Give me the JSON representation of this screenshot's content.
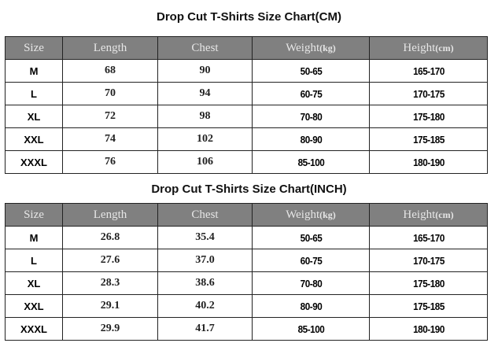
{
  "tables": [
    {
      "title": "Drop Cut T-Shirts Size Chart(CM)",
      "headers": {
        "size": "Size",
        "length": "Length",
        "chest": "Chest",
        "weight": "Weight",
        "weight_unit": "(kg)",
        "height": "Height",
        "height_unit": "(cm)"
      },
      "rows": [
        {
          "size": "M",
          "length": "68",
          "chest": "90",
          "weight": "50-65",
          "height": "165-170"
        },
        {
          "size": "L",
          "length": "70",
          "chest": "94",
          "weight": "60-75",
          "height": "170-175"
        },
        {
          "size": "XL",
          "length": "72",
          "chest": "98",
          "weight": "70-80",
          "height": "175-180"
        },
        {
          "size": "XXL",
          "length": "74",
          "chest": "102",
          "weight": "80-90",
          "height": "175-185"
        },
        {
          "size": "XXXL",
          "length": "76",
          "chest": "106",
          "weight": "85-100",
          "height": "180-190"
        }
      ]
    },
    {
      "title": "Drop Cut T-Shirts Size Chart(INCH)",
      "headers": {
        "size": "Size",
        "length": "Length",
        "chest": "Chest",
        "weight": "Weight",
        "weight_unit": "(kg)",
        "height": "Height",
        "height_unit": "(cm)"
      },
      "rows": [
        {
          "size": "M",
          "length": "26.8",
          "chest": "35.4",
          "weight": "50-65",
          "height": "165-170"
        },
        {
          "size": "L",
          "length": "27.6",
          "chest": "37.0",
          "weight": "60-75",
          "height": "170-175"
        },
        {
          "size": "XL",
          "length": "28.3",
          "chest": "38.6",
          "weight": "70-80",
          "height": "175-180"
        },
        {
          "size": "XXL",
          "length": "29.1",
          "chest": "40.2",
          "weight": "80-90",
          "height": "175-185"
        },
        {
          "size": "XXXL",
          "length": "29.9",
          "chest": "41.7",
          "weight": "85-100",
          "height": "180-190"
        }
      ]
    }
  ],
  "colors": {
    "header_bg": "#808080",
    "header_text": "#e6e6e6",
    "border": "#222222"
  }
}
